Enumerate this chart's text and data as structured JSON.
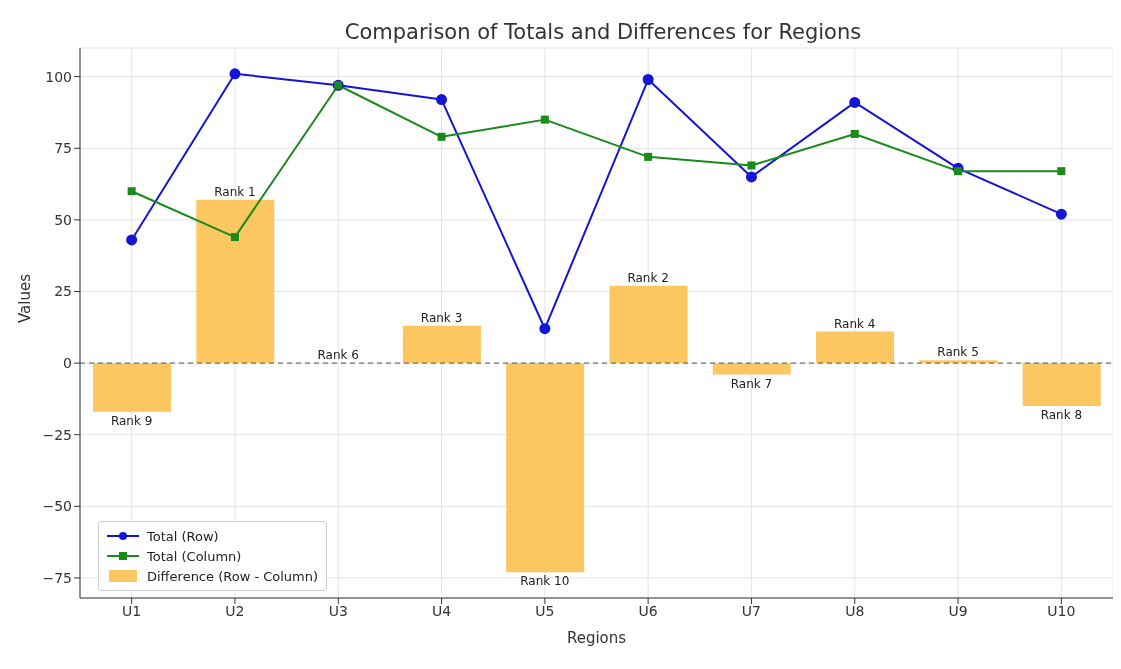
{
  "chart_data": {
    "type": "bar",
    "title": "Comparison of Totals and Differences for Regions",
    "xlabel": "Regions",
    "ylabel": "Values",
    "categories": [
      "U1",
      "U2",
      "U3",
      "U4",
      "U5",
      "U6",
      "U7",
      "U8",
      "U9",
      "U10"
    ],
    "series": [
      {
        "name": "Total (Row)",
        "type": "line",
        "color": "#1515d6",
        "marker": "circle",
        "values": [
          43,
          101,
          97,
          92,
          12,
          99,
          65,
          91,
          68,
          52
        ]
      },
      {
        "name": "Total (Column)",
        "type": "line",
        "color": "#1a8a1a",
        "marker": "square",
        "values": [
          60,
          44,
          97,
          79,
          85,
          72,
          69,
          80,
          67,
          67
        ]
      },
      {
        "name": "Difference (Row - Column)",
        "color": "#fcc661",
        "values": [
          -17,
          57,
          0,
          13,
          -73,
          27,
          -4,
          11,
          1,
          -15
        ],
        "value_labels": [
          "Rank 9",
          "Rank 1",
          "Rank 6",
          "Rank 3",
          "Rank 10",
          "Rank 2",
          "Rank 7",
          "Rank 4",
          "Rank 5",
          "Rank 8"
        ]
      }
    ],
    "ylim": [
      -82,
      110
    ],
    "yticks": [
      -75,
      -50,
      -25,
      0,
      25,
      50,
      75,
      100
    ],
    "grid": true,
    "legend": "bottom left",
    "ref_lines": [
      {
        "axis": "y",
        "value": 0,
        "color": "#555555",
        "line_style": "dashed"
      }
    ]
  }
}
